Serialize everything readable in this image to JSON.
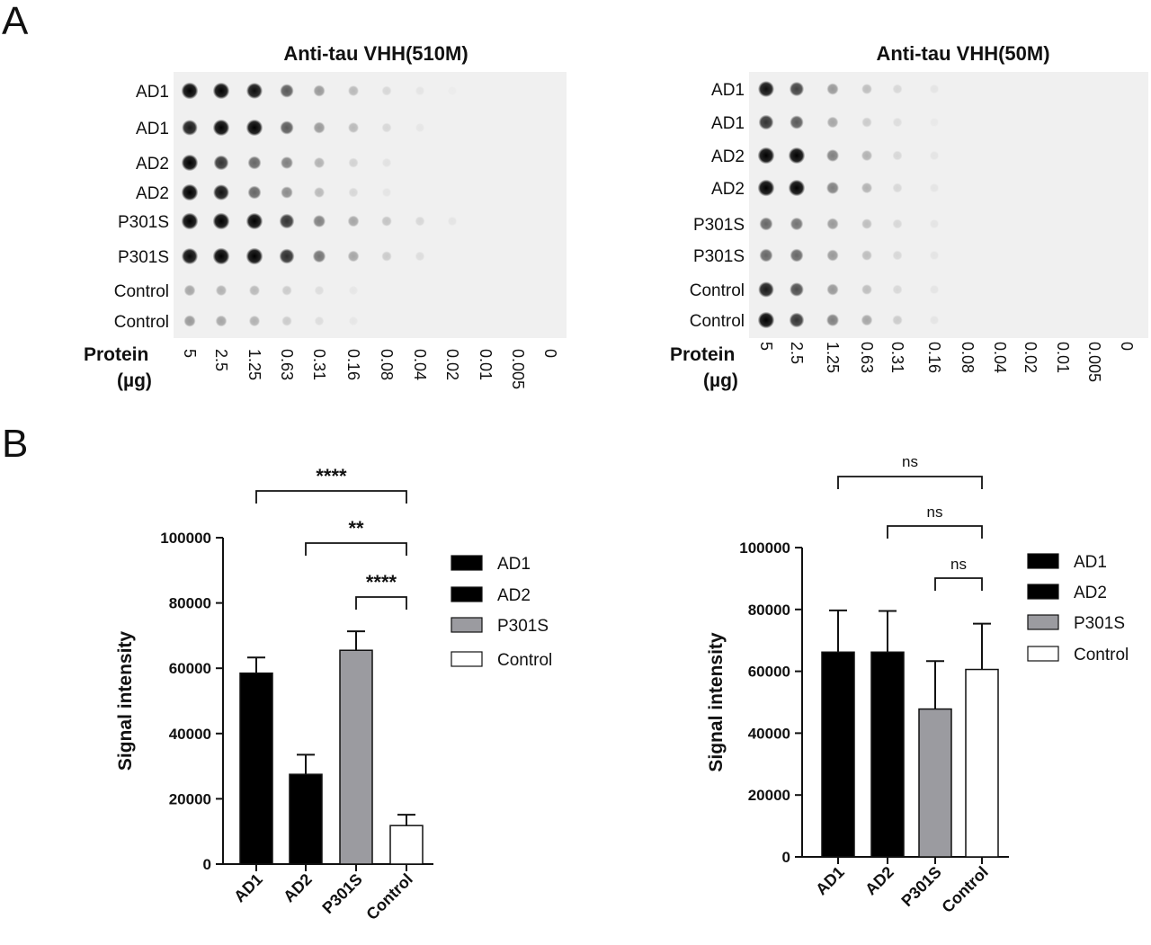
{
  "panels": {
    "a_label": "A",
    "b_label": "B"
  },
  "blots": [
    {
      "title": "Anti-tau VHH(510M)",
      "rows": [
        "AD1",
        "AD1",
        "AD2",
        "AD2",
        "P301S",
        "P301S",
        "Control",
        "Control"
      ],
      "protein_label_line1": "Protein",
      "protein_label_line2": "(µg)",
      "concentrations": [
        "5",
        "2.5",
        "1.25",
        "0.63",
        "0.31",
        "0.16",
        "0.08",
        "0.04",
        "0.02",
        "0.01",
        "0.005",
        "0"
      ],
      "spot_intensity": [
        [
          0.98,
          0.95,
          0.9,
          0.6,
          0.35,
          0.22,
          0.1,
          0.05,
          0.02,
          0.0,
          0.0,
          0.0
        ],
        [
          0.85,
          0.95,
          0.95,
          0.6,
          0.35,
          0.22,
          0.1,
          0.04,
          0.0,
          0.0,
          0.0,
          0.0
        ],
        [
          0.95,
          0.75,
          0.55,
          0.45,
          0.25,
          0.12,
          0.06,
          0.0,
          0.0,
          0.0,
          0.0,
          0.0
        ],
        [
          0.97,
          0.88,
          0.55,
          0.4,
          0.22,
          0.1,
          0.05,
          0.0,
          0.0,
          0.0,
          0.0,
          0.0
        ],
        [
          0.98,
          0.98,
          0.95,
          0.75,
          0.45,
          0.3,
          0.18,
          0.1,
          0.05,
          0.0,
          0.0,
          0.0
        ],
        [
          0.92,
          0.98,
          0.98,
          0.78,
          0.5,
          0.3,
          0.15,
          0.08,
          0.0,
          0.0,
          0.0,
          0.0
        ],
        [
          0.3,
          0.25,
          0.22,
          0.15,
          0.08,
          0.04,
          0.0,
          0.0,
          0.0,
          0.0,
          0.0,
          0.0
        ],
        [
          0.35,
          0.3,
          0.25,
          0.15,
          0.08,
          0.04,
          0.0,
          0.0,
          0.0,
          0.0,
          0.0,
          0.0
        ]
      ]
    },
    {
      "title": "Anti-tau VHH(50M)",
      "rows": [
        "AD1",
        "AD1",
        "AD2",
        "AD2",
        "P301S",
        "P301S",
        "Control",
        "Control"
      ],
      "protein_label_line1": "Protein",
      "protein_label_line2": "(µg)",
      "concentrations": [
        "5",
        "2.5",
        "1.25",
        "0.63",
        "0.31",
        "0.16",
        "0.08",
        "0.04",
        "0.02",
        "0.01",
        "0.005",
        "0"
      ],
      "spot_intensity": [
        [
          0.9,
          0.7,
          0.35,
          0.2,
          0.1,
          0.05,
          0.0,
          0.0,
          0.0,
          0.0,
          0.0,
          0.0
        ],
        [
          0.75,
          0.6,
          0.3,
          0.15,
          0.08,
          0.03,
          0.0,
          0.0,
          0.0,
          0.0,
          0.0,
          0.0
        ],
        [
          0.98,
          0.95,
          0.45,
          0.25,
          0.1,
          0.05,
          0.0,
          0.0,
          0.0,
          0.0,
          0.0,
          0.0
        ],
        [
          0.98,
          0.95,
          0.45,
          0.25,
          0.1,
          0.05,
          0.0,
          0.0,
          0.0,
          0.0,
          0.0,
          0.0
        ],
        [
          0.55,
          0.5,
          0.35,
          0.2,
          0.1,
          0.05,
          0.0,
          0.0,
          0.0,
          0.0,
          0.0,
          0.0
        ],
        [
          0.55,
          0.55,
          0.35,
          0.2,
          0.1,
          0.05,
          0.0,
          0.0,
          0.0,
          0.0,
          0.0,
          0.0
        ],
        [
          0.85,
          0.65,
          0.35,
          0.2,
          0.1,
          0.05,
          0.0,
          0.0,
          0.0,
          0.0,
          0.0,
          0.0
        ],
        [
          0.95,
          0.75,
          0.45,
          0.3,
          0.15,
          0.05,
          0.0,
          0.0,
          0.0,
          0.0,
          0.0,
          0.0
        ]
      ]
    }
  ],
  "colors": {
    "ad1": "#000000",
    "ad2": "#000000",
    "p301s": "#9b9ba0",
    "control": "#ffffff",
    "blot_bg": "#f0f0f0"
  },
  "chart_data": [
    {
      "type": "bar",
      "categories": [
        "AD1",
        "AD2",
        "P301S",
        "Control"
      ],
      "values": [
        58500,
        27500,
        65500,
        11800
      ],
      "errors": [
        4800,
        6000,
        5800,
        3300
      ],
      "ylabel": "Signal intensity",
      "ylim": [
        0,
        100000
      ],
      "yticks": [
        "0",
        "20000",
        "40000",
        "60000",
        "80000",
        "100000"
      ],
      "legend": [
        "AD1",
        "AD2",
        "P301S",
        "Control"
      ],
      "legend_position": "right",
      "significance": [
        {
          "from": "AD1",
          "to": "Control",
          "label": "****"
        },
        {
          "from": "AD2",
          "to": "Control",
          "label": "**"
        },
        {
          "from": "P301S",
          "to": "Control",
          "label": "****"
        }
      ]
    },
    {
      "type": "bar",
      "categories": [
        "AD1",
        "AD2",
        "P301S",
        "Control"
      ],
      "values": [
        66200,
        66200,
        47800,
        60600
      ],
      "errors": [
        13500,
        13300,
        15500,
        14800
      ],
      "ylabel": "Signal intensity",
      "ylim": [
        0,
        100000
      ],
      "yticks": [
        "0",
        "20000",
        "40000",
        "60000",
        "80000",
        "100000"
      ],
      "legend": [
        "AD1",
        "AD2",
        "P301S",
        "Control"
      ],
      "legend_position": "right",
      "significance": [
        {
          "from": "AD1",
          "to": "Control",
          "label": "ns"
        },
        {
          "from": "AD2",
          "to": "Control",
          "label": "ns"
        },
        {
          "from": "P301S",
          "to": "Control",
          "label": "ns"
        }
      ]
    }
  ]
}
